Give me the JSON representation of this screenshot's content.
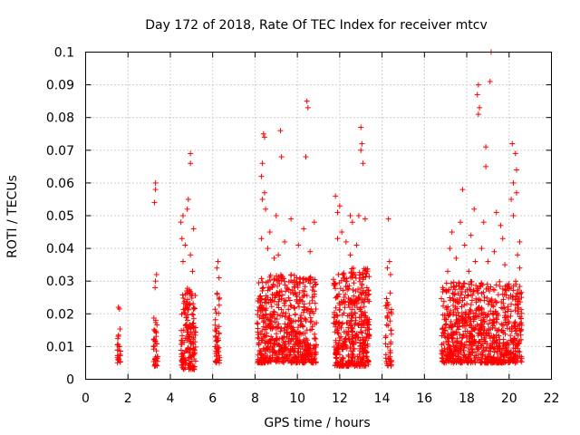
{
  "chart_data": {
    "type": "scatter",
    "title": "Day 172 of 2018, Rate Of TEC Index for receiver mtcv",
    "xlabel": "GPS time / hours",
    "ylabel": "ROTI / TECUs",
    "xlim": [
      0,
      22
    ],
    "ylim": [
      0,
      0.1
    ],
    "xticks": [
      "0",
      "2",
      "4",
      "6",
      "8",
      "10",
      "12",
      "14",
      "16",
      "18",
      "20",
      "22"
    ],
    "yticks": [
      "0",
      "0.01",
      "0.02",
      "0.03",
      "0.04",
      "0.05",
      "0.06",
      "0.07",
      "0.08",
      "0.09",
      "0.1"
    ],
    "grid": true,
    "marker": "+",
    "color": "#ff0000",
    "series": [
      {
        "name": "ROTI",
        "clusters": [
          {
            "x_start": 1.5,
            "x_end": 1.65,
            "y_min": 0.005,
            "y_max": 0.017,
            "density": 22,
            "outliers": [
              [
                1.55,
                0.022
              ],
              [
                1.6,
                0.0215
              ]
            ]
          },
          {
            "x_start": 3.2,
            "x_end": 3.4,
            "y_min": 0.004,
            "y_max": 0.02,
            "density": 40,
            "outliers": [
              [
                3.3,
                0.06
              ],
              [
                3.3,
                0.058
              ],
              [
                3.25,
                0.054
              ],
              [
                3.35,
                0.032
              ],
              [
                3.3,
                0.03
              ],
              [
                3.28,
                0.028
              ]
            ]
          },
          {
            "x_start": 4.5,
            "x_end": 5.2,
            "y_min": 0.003,
            "y_max": 0.028,
            "density": 170,
            "outliers": [
              [
                4.95,
                0.069
              ],
              [
                4.95,
                0.066
              ],
              [
                4.85,
                0.055
              ],
              [
                4.8,
                0.052
              ],
              [
                4.6,
                0.05
              ],
              [
                4.5,
                0.048
              ],
              [
                5.1,
                0.046
              ],
              [
                4.55,
                0.043
              ],
              [
                4.7,
                0.041
              ],
              [
                4.95,
                0.038
              ],
              [
                4.6,
                0.036
              ],
              [
                5.05,
                0.033
              ]
            ]
          },
          {
            "x_start": 6.1,
            "x_end": 6.35,
            "y_min": 0.005,
            "y_max": 0.027,
            "density": 50,
            "outliers": [
              [
                6.25,
                0.036
              ],
              [
                6.2,
                0.034
              ],
              [
                6.3,
                0.031
              ]
            ]
          },
          {
            "x_start": 8.1,
            "x_end": 10.9,
            "y_min": 0.005,
            "y_max": 0.032,
            "density": 650,
            "outliers": [
              [
                8.4,
                0.075
              ],
              [
                8.45,
                0.074
              ],
              [
                9.2,
                0.076
              ],
              [
                10.45,
                0.085
              ],
              [
                10.5,
                0.083
              ],
              [
                10.4,
                0.068
              ],
              [
                9.25,
                0.068
              ],
              [
                8.35,
                0.066
              ],
              [
                8.3,
                0.062
              ],
              [
                8.45,
                0.057
              ],
              [
                8.35,
                0.055
              ],
              [
                8.5,
                0.052
              ],
              [
                9.0,
                0.05
              ],
              [
                9.7,
                0.049
              ],
              [
                10.3,
                0.046
              ],
              [
                8.7,
                0.045
              ],
              [
                10.8,
                0.048
              ],
              [
                8.3,
                0.043
              ],
              [
                9.4,
                0.042
              ],
              [
                10.05,
                0.041
              ],
              [
                8.6,
                0.04
              ],
              [
                10.6,
                0.039
              ],
              [
                9.1,
                0.038
              ],
              [
                8.9,
                0.037
              ]
            ]
          },
          {
            "x_start": 11.7,
            "x_end": 13.4,
            "y_min": 0.004,
            "y_max": 0.034,
            "density": 450,
            "outliers": [
              [
                13.0,
                0.077
              ],
              [
                13.05,
                0.072
              ],
              [
                13.0,
                0.07
              ],
              [
                13.1,
                0.066
              ],
              [
                11.8,
                0.056
              ],
              [
                12.0,
                0.053
              ],
              [
                11.9,
                0.051
              ],
              [
                12.5,
                0.05
              ],
              [
                12.9,
                0.05
              ],
              [
                12.6,
                0.048
              ],
              [
                13.2,
                0.049
              ],
              [
                12.1,
                0.045
              ],
              [
                11.9,
                0.043
              ],
              [
                12.3,
                0.042
              ],
              [
                12.8,
                0.041
              ],
              [
                12.5,
                0.038
              ]
            ]
          },
          {
            "x_start": 14.15,
            "x_end": 14.45,
            "y_min": 0.004,
            "y_max": 0.028,
            "density": 45,
            "outliers": [
              [
                14.3,
                0.049
              ],
              [
                14.35,
                0.036
              ],
              [
                14.25,
                0.034
              ],
              [
                14.4,
                0.032
              ]
            ]
          },
          {
            "x_start": 16.8,
            "x_end": 20.6,
            "y_min": 0.005,
            "y_max": 0.03,
            "density": 850,
            "outliers": [
              [
                19.15,
                0.1
              ],
              [
                18.55,
                0.09
              ],
              [
                19.1,
                0.091
              ],
              [
                18.5,
                0.087
              ],
              [
                18.6,
                0.083
              ],
              [
                18.55,
                0.081
              ],
              [
                18.9,
                0.071
              ],
              [
                20.15,
                0.072
              ],
              [
                20.3,
                0.069
              ],
              [
                18.9,
                0.065
              ],
              [
                20.35,
                0.064
              ],
              [
                20.2,
                0.06
              ],
              [
                17.8,
                0.058
              ],
              [
                20.35,
                0.057
              ],
              [
                20.1,
                0.055
              ],
              [
                18.35,
                0.052
              ],
              [
                19.4,
                0.051
              ],
              [
                20.2,
                0.05
              ],
              [
                17.7,
                0.048
              ],
              [
                18.8,
                0.048
              ],
              [
                19.6,
                0.047
              ],
              [
                17.3,
                0.045
              ],
              [
                18.2,
                0.044
              ],
              [
                19.7,
                0.043
              ],
              [
                20.5,
                0.042
              ],
              [
                17.2,
                0.04
              ],
              [
                17.9,
                0.041
              ],
              [
                18.7,
                0.04
              ],
              [
                19.3,
                0.039
              ],
              [
                20.4,
                0.038
              ],
              [
                17.5,
                0.037
              ],
              [
                18.4,
                0.036
              ],
              [
                19.0,
                0.036
              ],
              [
                19.8,
                0.035
              ],
              [
                20.5,
                0.034
              ],
              [
                17.1,
                0.033
              ],
              [
                18.1,
                0.033
              ]
            ]
          }
        ]
      }
    ]
  }
}
